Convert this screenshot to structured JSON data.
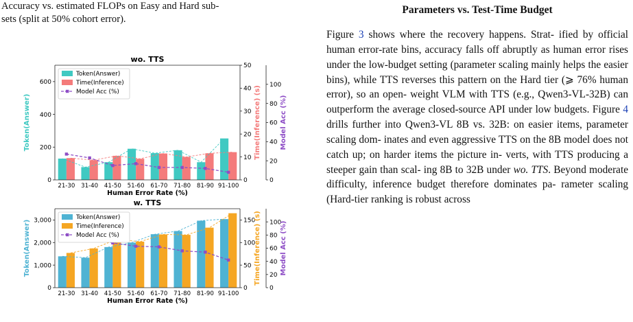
{
  "caption": {
    "line1": "Accuracy vs. estimated FLOPs on Easy and Hard sub-",
    "line2_pre": "sets (split at ",
    "line2_pct": "50%",
    "line2_post": " cohort error)."
  },
  "section_title": "Parameters vs. Test-Time Budget",
  "paragraph": {
    "p1_pre": "Figure ",
    "ref1": "3",
    "p1_mid": " shows where the recovery happens. Strat- ified by official human error-rate bins, accuracy falls off abruptly as human error rises under the low-budget setting (parameter scaling mainly helps the easier bins), while TTS reverses this pattern on the Hard tier (⩾ 76% human error), so an open- weight VLM with TTS (e.g., Qwen3-VL-32B) can outperform the average closed-source API under low budgets. Figure ",
    "ref2": "4",
    "p1_post": " drills further into Qwen3-VL 8B vs. 32B: on easier items, parameter scaling dom- inates and even aggressive TTS on the 8B model does not catch up; on harder items the picture in- verts, with TTS producing a steeper gain than scal- ing 8B to 32B under ",
    "italic": "wo. TTS",
    "p1_end": ". Beyond moderate difficulty, inference budget therefore dominates pa- rameter scaling (Hard-tier ranking is robust across"
  },
  "chart_data": [
    {
      "type": "bar",
      "title": "wo. TTS",
      "xlabel": "Human Error Rate (%)",
      "ylabel": "Token(Answer)",
      "ylabel_right": "Time(Inference) (s)",
      "ylabel_right2": "Model Acc (%)",
      "categories": [
        "21-30",
        "31-40",
        "41-50",
        "51-60",
        "61-70",
        "71-80",
        "81-90",
        "91-100"
      ],
      "ylim": [
        0,
        700
      ],
      "yticks": [
        0,
        200,
        400,
        600
      ],
      "ytick_labels": [
        "0",
        "200",
        "400",
        "600"
      ],
      "y2lim": [
        0,
        50
      ],
      "y2ticks": [
        0,
        10,
        20,
        30,
        40,
        50
      ],
      "y3lim": [
        0,
        120
      ],
      "y3ticks": [
        0,
        20,
        40,
        60,
        80,
        100
      ],
      "series": [
        {
          "name": "Token(Answer)",
          "axis": "left",
          "color": "#40c9c2",
          "values": [
            130,
            78,
            108,
            190,
            163,
            181,
            108,
            253
          ]
        },
        {
          "name": "Time(Inference)",
          "axis": "right",
          "color": "#f47b7b",
          "values": [
            9.5,
            8.6,
            10.5,
            9.2,
            11.5,
            10.0,
            11.6,
            12.1
          ]
        },
        {
          "name": "Model Acc (%)",
          "axis": "right2",
          "color": "#8e4ec6",
          "values": [
            27,
            23,
            15,
            17,
            13,
            13,
            12,
            8
          ]
        }
      ],
      "legend": "top-left",
      "grid": false
    },
    {
      "type": "bar",
      "title": "w. TTS",
      "xlabel": "Human Error Rate (%)",
      "ylabel": "Token(Answer)",
      "ylabel_right": "Time(Inference) (s)",
      "ylabel_right2": "Model Acc (%)",
      "categories": [
        "21-30",
        "31-40",
        "41-50",
        "51-60",
        "61-70",
        "71-80",
        "81-90",
        "91-100"
      ],
      "ylim": [
        0,
        3500
      ],
      "yticks": [
        0,
        1000,
        2000,
        3000
      ],
      "ytick_labels": [
        "0",
        "1,000",
        "2,000",
        "3,000"
      ],
      "y2lim": [
        0,
        175
      ],
      "y2ticks": [
        0,
        50,
        100,
        150
      ],
      "y3lim": [
        0,
        120
      ],
      "y3ticks": [
        0,
        20,
        40,
        60,
        80,
        100
      ],
      "series": [
        {
          "name": "Token(Answer)",
          "axis": "left",
          "color": "#4fb3d3",
          "values": [
            1390,
            1330,
            1800,
            2000,
            2370,
            2510,
            2970,
            3040
          ]
        },
        {
          "name": "Time(Inference)",
          "axis": "right",
          "color": "#f5a623",
          "values": [
            77,
            87,
            107,
            102,
            118,
            117,
            133,
            165
          ]
        },
        {
          "name": "Model Acc (%)",
          "axis": "right2",
          "color": "#8e4ec6",
          "values": [
            75,
            76,
            68,
            63,
            62,
            56,
            54,
            42
          ]
        }
      ],
      "legend": "top-left",
      "grid": false
    }
  ]
}
